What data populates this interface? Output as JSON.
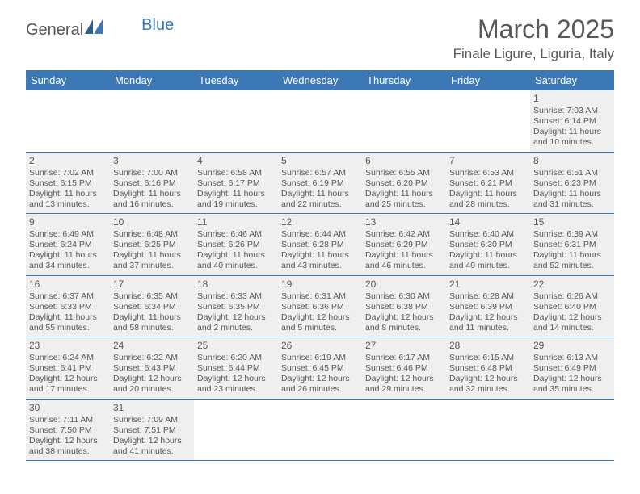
{
  "logo": {
    "part1": "General",
    "part2": "Blue"
  },
  "title": "March 2025",
  "location": "Finale Ligure, Liguria, Italy",
  "colors": {
    "header_bg": "#3b78b5",
    "header_text": "#ffffff",
    "cell_bg": "#efefef",
    "text": "#595959",
    "border": "#3b78b5"
  },
  "weekdays": [
    "Sunday",
    "Monday",
    "Tuesday",
    "Wednesday",
    "Thursday",
    "Friday",
    "Saturday"
  ],
  "weeks": [
    [
      {
        "blank": true
      },
      {
        "blank": true
      },
      {
        "blank": true
      },
      {
        "blank": true
      },
      {
        "blank": true
      },
      {
        "blank": true
      },
      {
        "day": "1",
        "sunrise": "Sunrise: 7:03 AM",
        "sunset": "Sunset: 6:14 PM",
        "daylight1": "Daylight: 11 hours",
        "daylight2": "and 10 minutes."
      }
    ],
    [
      {
        "day": "2",
        "sunrise": "Sunrise: 7:02 AM",
        "sunset": "Sunset: 6:15 PM",
        "daylight1": "Daylight: 11 hours",
        "daylight2": "and 13 minutes."
      },
      {
        "day": "3",
        "sunrise": "Sunrise: 7:00 AM",
        "sunset": "Sunset: 6:16 PM",
        "daylight1": "Daylight: 11 hours",
        "daylight2": "and 16 minutes."
      },
      {
        "day": "4",
        "sunrise": "Sunrise: 6:58 AM",
        "sunset": "Sunset: 6:17 PM",
        "daylight1": "Daylight: 11 hours",
        "daylight2": "and 19 minutes."
      },
      {
        "day": "5",
        "sunrise": "Sunrise: 6:57 AM",
        "sunset": "Sunset: 6:19 PM",
        "daylight1": "Daylight: 11 hours",
        "daylight2": "and 22 minutes."
      },
      {
        "day": "6",
        "sunrise": "Sunrise: 6:55 AM",
        "sunset": "Sunset: 6:20 PM",
        "daylight1": "Daylight: 11 hours",
        "daylight2": "and 25 minutes."
      },
      {
        "day": "7",
        "sunrise": "Sunrise: 6:53 AM",
        "sunset": "Sunset: 6:21 PM",
        "daylight1": "Daylight: 11 hours",
        "daylight2": "and 28 minutes."
      },
      {
        "day": "8",
        "sunrise": "Sunrise: 6:51 AM",
        "sunset": "Sunset: 6:23 PM",
        "daylight1": "Daylight: 11 hours",
        "daylight2": "and 31 minutes."
      }
    ],
    [
      {
        "day": "9",
        "sunrise": "Sunrise: 6:49 AM",
        "sunset": "Sunset: 6:24 PM",
        "daylight1": "Daylight: 11 hours",
        "daylight2": "and 34 minutes."
      },
      {
        "day": "10",
        "sunrise": "Sunrise: 6:48 AM",
        "sunset": "Sunset: 6:25 PM",
        "daylight1": "Daylight: 11 hours",
        "daylight2": "and 37 minutes."
      },
      {
        "day": "11",
        "sunrise": "Sunrise: 6:46 AM",
        "sunset": "Sunset: 6:26 PM",
        "daylight1": "Daylight: 11 hours",
        "daylight2": "and 40 minutes."
      },
      {
        "day": "12",
        "sunrise": "Sunrise: 6:44 AM",
        "sunset": "Sunset: 6:28 PM",
        "daylight1": "Daylight: 11 hours",
        "daylight2": "and 43 minutes."
      },
      {
        "day": "13",
        "sunrise": "Sunrise: 6:42 AM",
        "sunset": "Sunset: 6:29 PM",
        "daylight1": "Daylight: 11 hours",
        "daylight2": "and 46 minutes."
      },
      {
        "day": "14",
        "sunrise": "Sunrise: 6:40 AM",
        "sunset": "Sunset: 6:30 PM",
        "daylight1": "Daylight: 11 hours",
        "daylight2": "and 49 minutes."
      },
      {
        "day": "15",
        "sunrise": "Sunrise: 6:39 AM",
        "sunset": "Sunset: 6:31 PM",
        "daylight1": "Daylight: 11 hours",
        "daylight2": "and 52 minutes."
      }
    ],
    [
      {
        "day": "16",
        "sunrise": "Sunrise: 6:37 AM",
        "sunset": "Sunset: 6:33 PM",
        "daylight1": "Daylight: 11 hours",
        "daylight2": "and 55 minutes."
      },
      {
        "day": "17",
        "sunrise": "Sunrise: 6:35 AM",
        "sunset": "Sunset: 6:34 PM",
        "daylight1": "Daylight: 11 hours",
        "daylight2": "and 58 minutes."
      },
      {
        "day": "18",
        "sunrise": "Sunrise: 6:33 AM",
        "sunset": "Sunset: 6:35 PM",
        "daylight1": "Daylight: 12 hours",
        "daylight2": "and 2 minutes."
      },
      {
        "day": "19",
        "sunrise": "Sunrise: 6:31 AM",
        "sunset": "Sunset: 6:36 PM",
        "daylight1": "Daylight: 12 hours",
        "daylight2": "and 5 minutes."
      },
      {
        "day": "20",
        "sunrise": "Sunrise: 6:30 AM",
        "sunset": "Sunset: 6:38 PM",
        "daylight1": "Daylight: 12 hours",
        "daylight2": "and 8 minutes."
      },
      {
        "day": "21",
        "sunrise": "Sunrise: 6:28 AM",
        "sunset": "Sunset: 6:39 PM",
        "daylight1": "Daylight: 12 hours",
        "daylight2": "and 11 minutes."
      },
      {
        "day": "22",
        "sunrise": "Sunrise: 6:26 AM",
        "sunset": "Sunset: 6:40 PM",
        "daylight1": "Daylight: 12 hours",
        "daylight2": "and 14 minutes."
      }
    ],
    [
      {
        "day": "23",
        "sunrise": "Sunrise: 6:24 AM",
        "sunset": "Sunset: 6:41 PM",
        "daylight1": "Daylight: 12 hours",
        "daylight2": "and 17 minutes."
      },
      {
        "day": "24",
        "sunrise": "Sunrise: 6:22 AM",
        "sunset": "Sunset: 6:43 PM",
        "daylight1": "Daylight: 12 hours",
        "daylight2": "and 20 minutes."
      },
      {
        "day": "25",
        "sunrise": "Sunrise: 6:20 AM",
        "sunset": "Sunset: 6:44 PM",
        "daylight1": "Daylight: 12 hours",
        "daylight2": "and 23 minutes."
      },
      {
        "day": "26",
        "sunrise": "Sunrise: 6:19 AM",
        "sunset": "Sunset: 6:45 PM",
        "daylight1": "Daylight: 12 hours",
        "daylight2": "and 26 minutes."
      },
      {
        "day": "27",
        "sunrise": "Sunrise: 6:17 AM",
        "sunset": "Sunset: 6:46 PM",
        "daylight1": "Daylight: 12 hours",
        "daylight2": "and 29 minutes."
      },
      {
        "day": "28",
        "sunrise": "Sunrise: 6:15 AM",
        "sunset": "Sunset: 6:48 PM",
        "daylight1": "Daylight: 12 hours",
        "daylight2": "and 32 minutes."
      },
      {
        "day": "29",
        "sunrise": "Sunrise: 6:13 AM",
        "sunset": "Sunset: 6:49 PM",
        "daylight1": "Daylight: 12 hours",
        "daylight2": "and 35 minutes."
      }
    ],
    [
      {
        "day": "30",
        "sunrise": "Sunrise: 7:11 AM",
        "sunset": "Sunset: 7:50 PM",
        "daylight1": "Daylight: 12 hours",
        "daylight2": "and 38 minutes."
      },
      {
        "day": "31",
        "sunrise": "Sunrise: 7:09 AM",
        "sunset": "Sunset: 7:51 PM",
        "daylight1": "Daylight: 12 hours",
        "daylight2": "and 41 minutes."
      },
      {
        "blank": true
      },
      {
        "blank": true
      },
      {
        "blank": true
      },
      {
        "blank": true
      },
      {
        "blank": true
      }
    ]
  ]
}
